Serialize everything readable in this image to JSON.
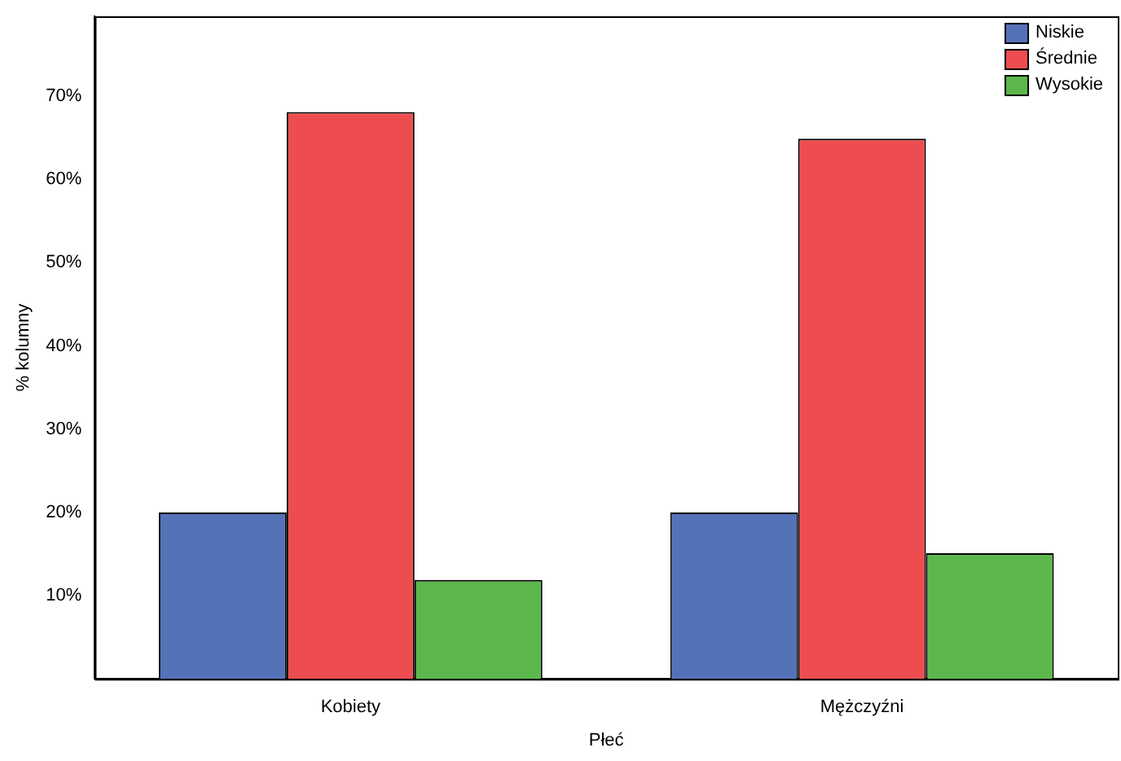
{
  "chart_data": {
    "type": "bar",
    "xlabel": "Płeć",
    "ylabel": "% kolumny",
    "categories": [
      "Kobiety",
      "Mężczyźni"
    ],
    "series": [
      {
        "name": "Niskie",
        "color": "#5472b8",
        "values": [
          20.0,
          20.0
        ]
      },
      {
        "name": "Średnie",
        "color": "#ee4d4f",
        "values": [
          68.1,
          64.9
        ]
      },
      {
        "name": "Wysokie",
        "color": "#5cb84c",
        "values": [
          11.9,
          15.1
        ]
      }
    ],
    "ylim": [
      0,
      79.6
    ],
    "yticks": [
      {
        "value": 10,
        "label": "10%"
      },
      {
        "value": 20,
        "label": "20%"
      },
      {
        "value": 30,
        "label": "30%"
      },
      {
        "value": 40,
        "label": "40%"
      },
      {
        "value": 50,
        "label": "50%"
      },
      {
        "value": 60,
        "label": "60%"
      },
      {
        "value": 70,
        "label": "70%"
      }
    ],
    "grid": false,
    "legend": "top right"
  }
}
